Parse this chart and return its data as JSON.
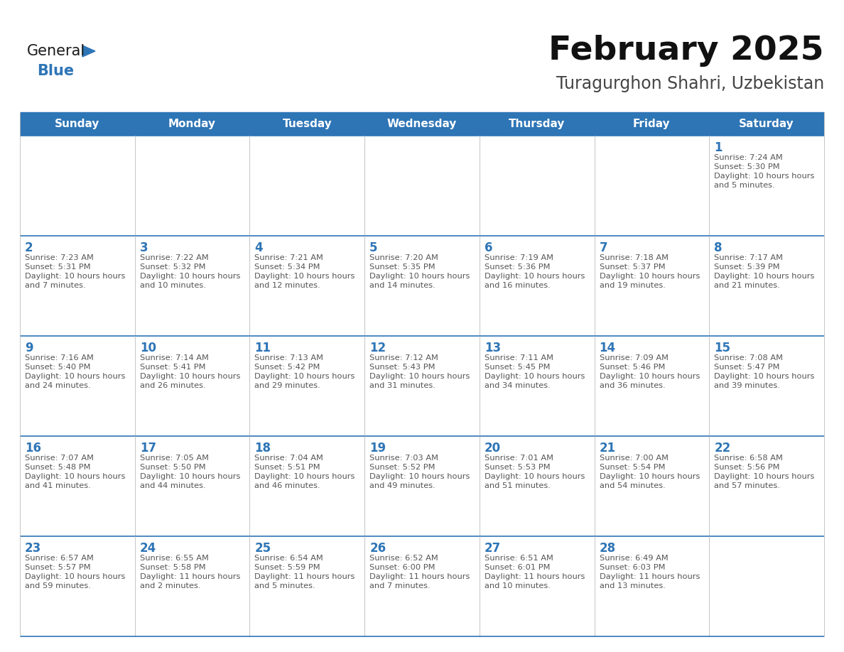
{
  "title": "February 2025",
  "subtitle": "Turagurghon Shahri, Uzbekistan",
  "header_bg": "#2E75B6",
  "header_text_color": "#FFFFFF",
  "border_color": "#2E75B6",
  "text_color": "#555555",
  "day_number_color": "#2E75B6",
  "days_of_week": [
    "Sunday",
    "Monday",
    "Tuesday",
    "Wednesday",
    "Thursday",
    "Friday",
    "Saturday"
  ],
  "calendar_data": [
    [
      {
        "day": null
      },
      {
        "day": null
      },
      {
        "day": null
      },
      {
        "day": null
      },
      {
        "day": null
      },
      {
        "day": null
      },
      {
        "day": 1,
        "sunrise": "7:24 AM",
        "sunset": "5:30 PM",
        "daylight": "10 hours and 5 minutes"
      }
    ],
    [
      {
        "day": 2,
        "sunrise": "7:23 AM",
        "sunset": "5:31 PM",
        "daylight": "10 hours and 7 minutes"
      },
      {
        "day": 3,
        "sunrise": "7:22 AM",
        "sunset": "5:32 PM",
        "daylight": "10 hours and 10 minutes"
      },
      {
        "day": 4,
        "sunrise": "7:21 AM",
        "sunset": "5:34 PM",
        "daylight": "10 hours and 12 minutes"
      },
      {
        "day": 5,
        "sunrise": "7:20 AM",
        "sunset": "5:35 PM",
        "daylight": "10 hours and 14 minutes"
      },
      {
        "day": 6,
        "sunrise": "7:19 AM",
        "sunset": "5:36 PM",
        "daylight": "10 hours and 16 minutes"
      },
      {
        "day": 7,
        "sunrise": "7:18 AM",
        "sunset": "5:37 PM",
        "daylight": "10 hours and 19 minutes"
      },
      {
        "day": 8,
        "sunrise": "7:17 AM",
        "sunset": "5:39 PM",
        "daylight": "10 hours and 21 minutes"
      }
    ],
    [
      {
        "day": 9,
        "sunrise": "7:16 AM",
        "sunset": "5:40 PM",
        "daylight": "10 hours and 24 minutes"
      },
      {
        "day": 10,
        "sunrise": "7:14 AM",
        "sunset": "5:41 PM",
        "daylight": "10 hours and 26 minutes"
      },
      {
        "day": 11,
        "sunrise": "7:13 AM",
        "sunset": "5:42 PM",
        "daylight": "10 hours and 29 minutes"
      },
      {
        "day": 12,
        "sunrise": "7:12 AM",
        "sunset": "5:43 PM",
        "daylight": "10 hours and 31 minutes"
      },
      {
        "day": 13,
        "sunrise": "7:11 AM",
        "sunset": "5:45 PM",
        "daylight": "10 hours and 34 minutes"
      },
      {
        "day": 14,
        "sunrise": "7:09 AM",
        "sunset": "5:46 PM",
        "daylight": "10 hours and 36 minutes"
      },
      {
        "day": 15,
        "sunrise": "7:08 AM",
        "sunset": "5:47 PM",
        "daylight": "10 hours and 39 minutes"
      }
    ],
    [
      {
        "day": 16,
        "sunrise": "7:07 AM",
        "sunset": "5:48 PM",
        "daylight": "10 hours and 41 minutes"
      },
      {
        "day": 17,
        "sunrise": "7:05 AM",
        "sunset": "5:50 PM",
        "daylight": "10 hours and 44 minutes"
      },
      {
        "day": 18,
        "sunrise": "7:04 AM",
        "sunset": "5:51 PM",
        "daylight": "10 hours and 46 minutes"
      },
      {
        "day": 19,
        "sunrise": "7:03 AM",
        "sunset": "5:52 PM",
        "daylight": "10 hours and 49 minutes"
      },
      {
        "day": 20,
        "sunrise": "7:01 AM",
        "sunset": "5:53 PM",
        "daylight": "10 hours and 51 minutes"
      },
      {
        "day": 21,
        "sunrise": "7:00 AM",
        "sunset": "5:54 PM",
        "daylight": "10 hours and 54 minutes"
      },
      {
        "day": 22,
        "sunrise": "6:58 AM",
        "sunset": "5:56 PM",
        "daylight": "10 hours and 57 minutes"
      }
    ],
    [
      {
        "day": 23,
        "sunrise": "6:57 AM",
        "sunset": "5:57 PM",
        "daylight": "10 hours and 59 minutes"
      },
      {
        "day": 24,
        "sunrise": "6:55 AM",
        "sunset": "5:58 PM",
        "daylight": "11 hours and 2 minutes"
      },
      {
        "day": 25,
        "sunrise": "6:54 AM",
        "sunset": "5:59 PM",
        "daylight": "11 hours and 5 minutes"
      },
      {
        "day": 26,
        "sunrise": "6:52 AM",
        "sunset": "6:00 PM",
        "daylight": "11 hours and 7 minutes"
      },
      {
        "day": 27,
        "sunrise": "6:51 AM",
        "sunset": "6:01 PM",
        "daylight": "11 hours and 10 minutes"
      },
      {
        "day": 28,
        "sunrise": "6:49 AM",
        "sunset": "6:03 PM",
        "daylight": "11 hours and 13 minutes"
      },
      {
        "day": null
      }
    ]
  ],
  "logo_color_general": "#1a1a1a",
  "logo_color_blue": "#2E75B6",
  "logo_triangle_color": "#2E75B6",
  "figwidth": 11.88,
  "figheight": 9.18,
  "dpi": 100
}
